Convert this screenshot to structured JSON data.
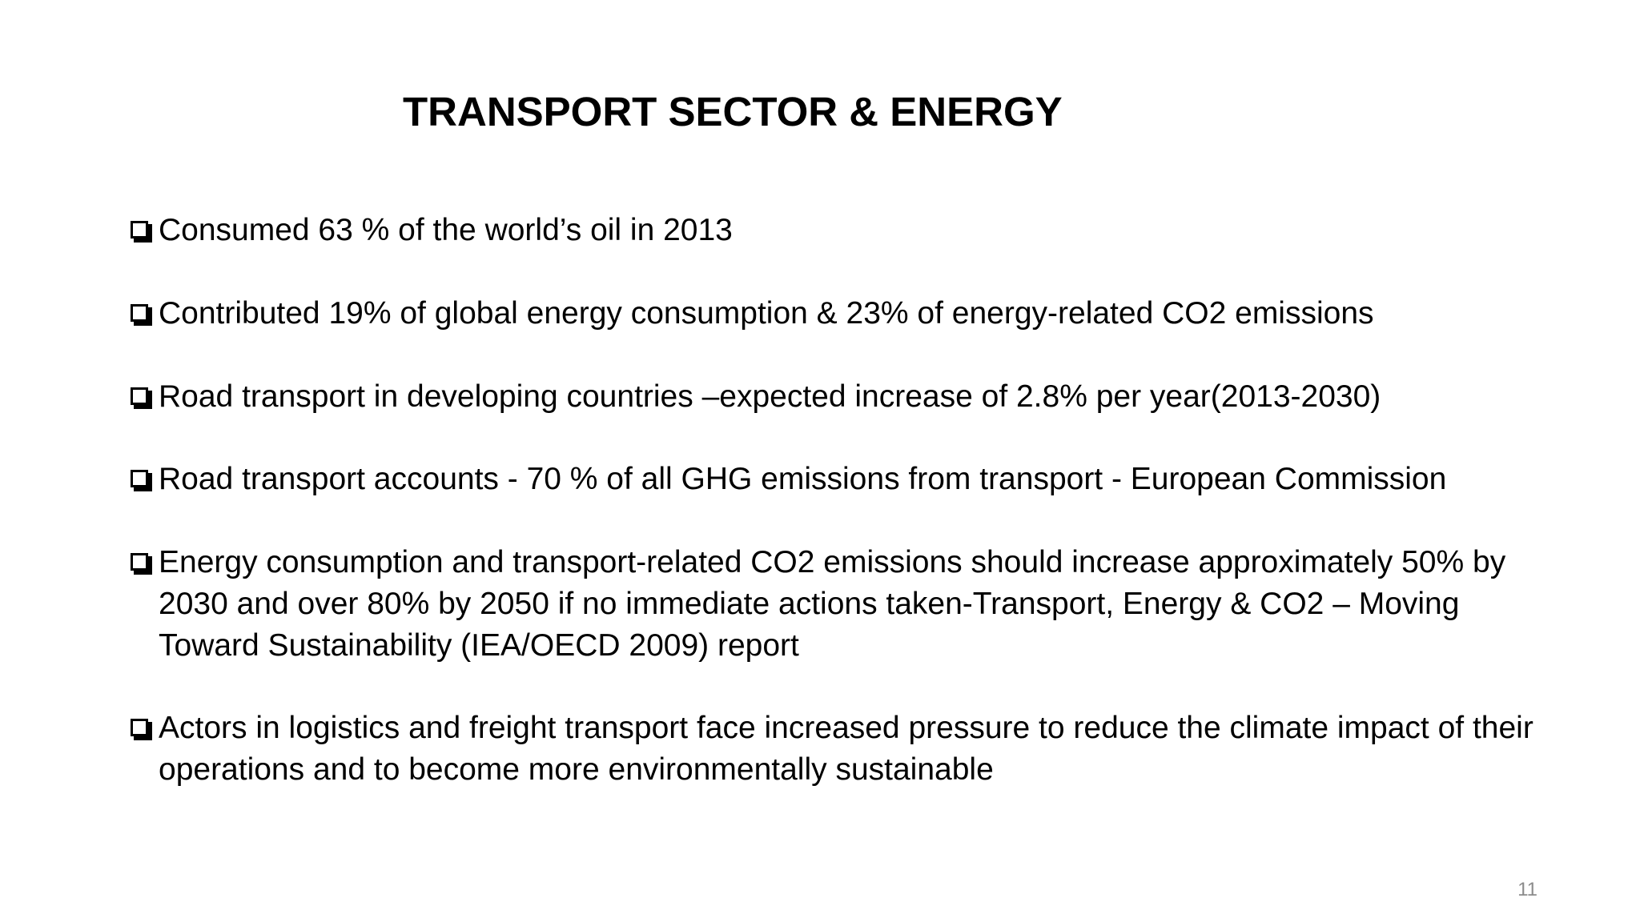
{
  "slide": {
    "title": "TRANSPORT SECTOR & ENERGY",
    "bullet_icon": "checkbox-square-icon",
    "bullets": [
      {
        "text": "Consumed 63 % of the world’s oil in 2013"
      },
      {
        "text": "Contributed 19% of global energy consumption & 23% of energy-related CO2 emissions"
      },
      {
        "text": "Road transport in developing countries –expected increase of 2.8% per year(2013-2030)"
      },
      {
        "text": "Road transport accounts - 70 %  of all GHG emissions from transport - European Commission"
      },
      {
        "text": "Energy consumption and transport-related CO2 emissions should increase approximately 50% by 2030 and over 80% by 2050 if no immediate actions taken-Transport, Energy & CO2 – Moving Toward Sustainability (IEA/OECD 2009) report"
      },
      {
        "text": "Actors in logistics and freight transport face increased pressure to reduce the climate impact of their operations and to become more environmentally sustainable"
      }
    ],
    "page_number": "11"
  },
  "colors": {
    "text": "#000000",
    "background": "#ffffff",
    "page_number": "#8c8c8c"
  }
}
